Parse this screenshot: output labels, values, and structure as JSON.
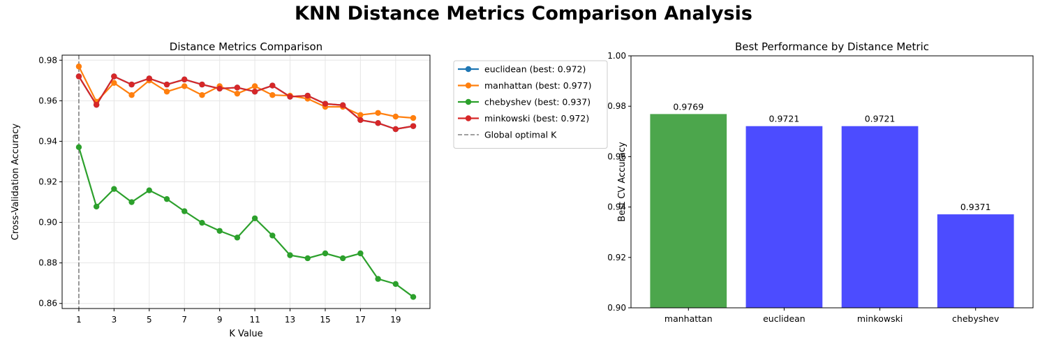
{
  "suptitle": "KNN Distance Metrics Comparison Analysis",
  "chart_data": [
    {
      "type": "line",
      "title": "Distance Metrics Comparison",
      "xlabel": "K Value",
      "ylabel": "Cross-Validation Accuracy",
      "xticks": [
        1,
        3,
        5,
        7,
        9,
        11,
        13,
        15,
        17,
        19
      ],
      "yticks": [
        0.86,
        0.88,
        0.9,
        0.92,
        0.94,
        0.96,
        0.98
      ],
      "ytick_labels": [
        "0.86",
        "0.88",
        "0.90",
        "0.92",
        "0.94",
        "0.96",
        "0.98"
      ],
      "xlim": [
        0.05,
        20.95
      ],
      "ylim": [
        0.8575,
        0.9825
      ],
      "grid": true,
      "legend_position": "outside-top-right",
      "x": [
        1,
        2,
        3,
        4,
        5,
        6,
        7,
        8,
        9,
        10,
        11,
        12,
        13,
        14,
        15,
        16,
        17,
        18,
        19,
        20
      ],
      "series": [
        {
          "name": "euclidean (best: 0.972)",
          "color": "#1f77b4",
          "values": [
            0.972,
            0.958,
            0.972,
            0.968,
            0.971,
            0.968,
            0.9705,
            0.968,
            0.966,
            0.9665,
            0.9645,
            0.9675,
            0.962,
            0.9625,
            0.9585,
            0.9578,
            0.9505,
            0.949,
            0.946,
            0.9475
          ]
        },
        {
          "name": "manhattan (best: 0.977)",
          "color": "#ff7f0e",
          "values": [
            0.9769,
            0.9595,
            0.9688,
            0.9628,
            0.97,
            0.9645,
            0.9672,
            0.9628,
            0.9672,
            0.9635,
            0.9672,
            0.9628,
            0.9625,
            0.961,
            0.957,
            0.957,
            0.953,
            0.954,
            0.9522,
            0.9515
          ]
        },
        {
          "name": "chebyshev (best: 0.937)",
          "color": "#2ca02c",
          "values": [
            0.9371,
            0.9078,
            0.9165,
            0.91,
            0.9158,
            0.9115,
            0.9055,
            0.8998,
            0.8958,
            0.8925,
            0.902,
            0.8935,
            0.8838,
            0.8823,
            0.8847,
            0.8823,
            0.8847,
            0.8721,
            0.8696,
            0.8632
          ]
        },
        {
          "name": "minkowski (best: 0.972)",
          "color": "#d62728",
          "values": [
            0.972,
            0.958,
            0.972,
            0.968,
            0.971,
            0.968,
            0.9705,
            0.968,
            0.966,
            0.9665,
            0.9645,
            0.9675,
            0.962,
            0.9625,
            0.9585,
            0.9578,
            0.9505,
            0.949,
            0.946,
            0.9475
          ]
        }
      ],
      "vline": {
        "x": 1,
        "name": "Global optimal K",
        "color": "#808080"
      }
    },
    {
      "type": "bar",
      "title": "Best Performance by Distance Metric",
      "xlabel": "",
      "ylabel": "Best CV Accuracy",
      "categories": [
        "manhattan",
        "euclidean",
        "minkowski",
        "chebyshev"
      ],
      "values": [
        0.9769,
        0.9721,
        0.9721,
        0.9371
      ],
      "value_labels": [
        "0.9769",
        "0.9721",
        "0.9721",
        "0.9371"
      ],
      "colors": [
        "#4ca64c",
        "#4c4cff",
        "#4c4cff",
        "#4c4cff"
      ],
      "ylim": [
        0.9,
        1.0
      ],
      "yticks": [
        0.9,
        0.92,
        0.94,
        0.96,
        0.98,
        1.0
      ],
      "ytick_labels": [
        "0.90",
        "0.92",
        "0.94",
        "0.96",
        "0.98",
        "1.00"
      ],
      "grid": false
    }
  ]
}
